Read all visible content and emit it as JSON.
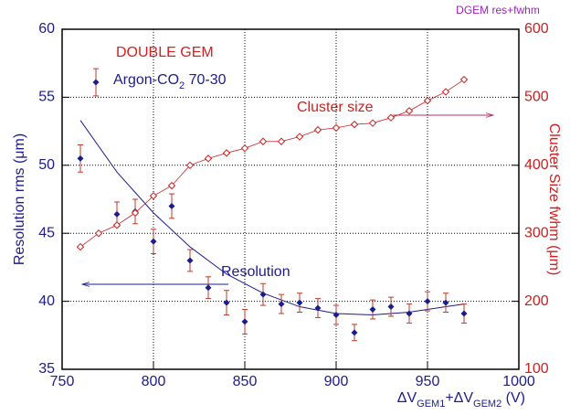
{
  "chart_data": {
    "type": "scatter",
    "title": "DGEM res+fwhm",
    "annotations": [
      "DOUBLE GEM",
      "Cluster size",
      "Resolution"
    ],
    "xlabel": "ΔVGEM1+ΔVGEM2 (V)",
    "ylabel": "Resolution rms (μm)",
    "y2label": "Cluster Size fwhm (μm)",
    "xlim": [
      750,
      1000
    ],
    "xticks": [
      750,
      800,
      850,
      900,
      950,
      1000
    ],
    "ylim": [
      35,
      60
    ],
    "yticks": [
      35,
      40,
      45,
      50,
      55,
      60
    ],
    "y2lim": [
      100,
      600
    ],
    "y2ticks": [
      100,
      200,
      300,
      400,
      500,
      600
    ],
    "grid": true,
    "x": [
      760,
      770,
      780,
      790,
      800,
      810,
      820,
      830,
      840,
      850,
      860,
      870,
      880,
      890,
      900,
      910,
      920,
      930,
      940,
      950,
      960,
      970
    ],
    "series": [
      {
        "name": "Argon-CO2 70-30",
        "color": "#1c1c8e",
        "error_color": "#c0392b",
        "values": [
          50.5,
          56.2,
          46.4,
          46.6,
          44.4,
          47.0,
          43.0,
          41.0,
          39.9,
          38.5,
          40.5,
          39.8,
          39.9,
          39.5,
          39.0,
          37.7,
          39.4,
          39.6,
          39.1,
          40.0,
          39.9,
          39.1
        ],
        "errors": [
          1.0,
          1.0,
          0.9,
          0.9,
          0.9,
          0.9,
          0.8,
          0.8,
          0.9,
          0.9,
          0.8,
          0.7,
          0.7,
          0.7,
          0.7,
          0.6,
          0.7,
          0.7,
          0.7,
          0.7,
          0.7,
          0.7
        ]
      },
      {
        "axis": "y2",
        "color": "#cc1f1f",
        "values": [
          280,
          300,
          312,
          330,
          355,
          370,
          400,
          410,
          418,
          425,
          435,
          435,
          442,
          452,
          455,
          460,
          462,
          470,
          480,
          495,
          508,
          526
        ]
      }
    ],
    "fit": {
      "color": "#1c1c8e",
      "x": [
        760,
        780,
        800,
        820,
        840,
        860,
        880,
        900,
        920,
        940,
        960,
        970
      ],
      "values": [
        53.3,
        49.5,
        46.5,
        44.0,
        42.0,
        40.6,
        39.6,
        39.1,
        39.0,
        39.2,
        39.6,
        39.8
      ]
    }
  }
}
